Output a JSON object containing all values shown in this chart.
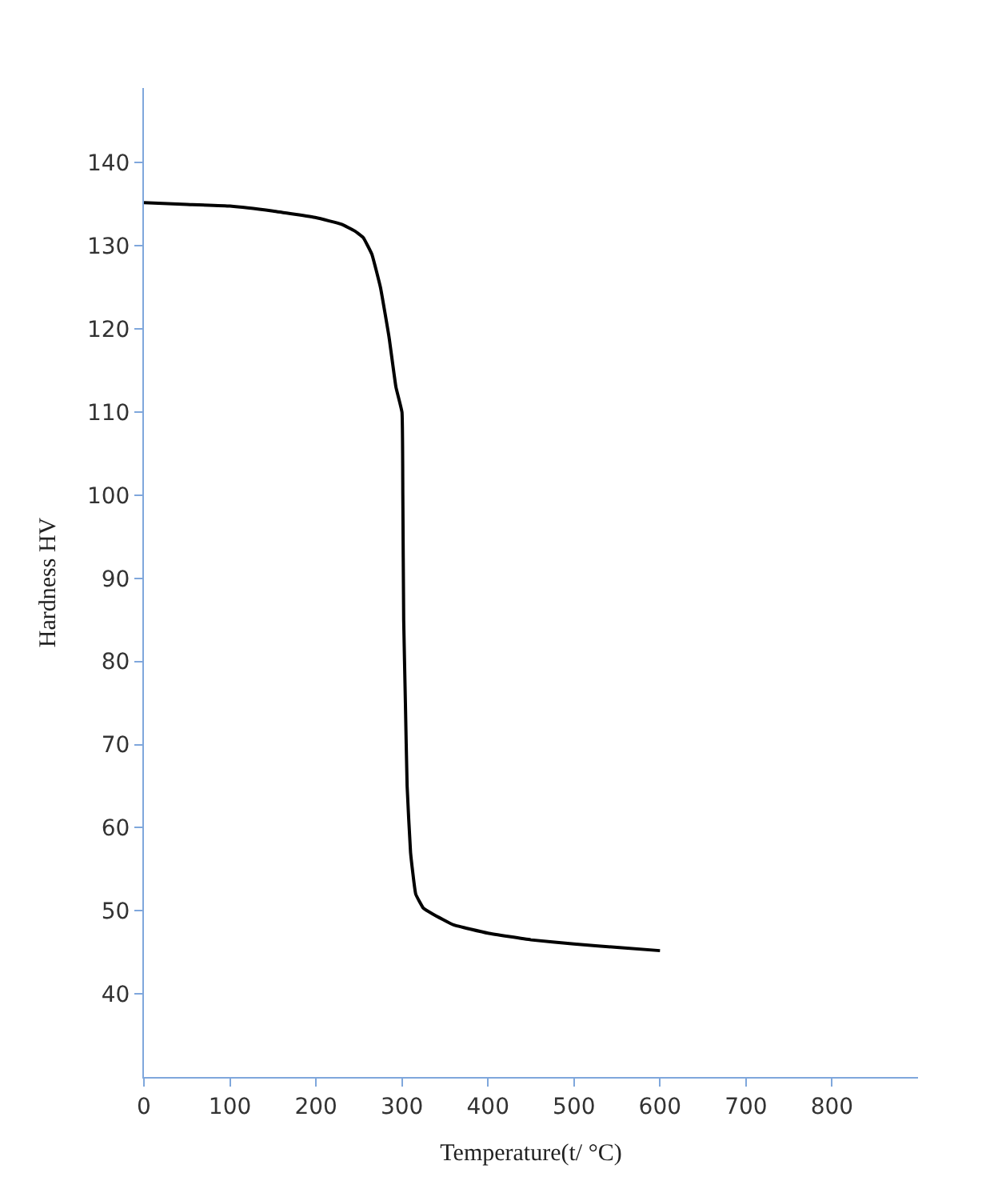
{
  "chart_data": {
    "type": "line",
    "xlabel": "Temperature(t/ °C)",
    "ylabel": "Hardness HV",
    "xlim": [
      0,
      900
    ],
    "ylim": [
      30,
      149
    ],
    "xticks": [
      0,
      100,
      200,
      300,
      400,
      500,
      600,
      700,
      800
    ],
    "yticks": [
      40,
      50,
      60,
      70,
      80,
      90,
      100,
      110,
      120,
      130,
      140
    ],
    "series": [
      {
        "color": "#000000",
        "x": [
          0,
          50,
          100,
          150,
          200,
          230,
          245,
          255,
          265,
          275,
          285,
          293,
          300,
          301,
          302,
          304,
          306,
          310,
          316,
          325,
          336,
          360,
          400,
          450,
          500,
          550,
          600
        ],
        "values": [
          135.2,
          135,
          134.8,
          134.2,
          133.4,
          132.6,
          131.8,
          131,
          129,
          125,
          119,
          113,
          110,
          100,
          85,
          75,
          65,
          57,
          52,
          50.3,
          49.6,
          48.3,
          47.3,
          46.5,
          46,
          45.6,
          45.2
        ]
      }
    ]
  }
}
